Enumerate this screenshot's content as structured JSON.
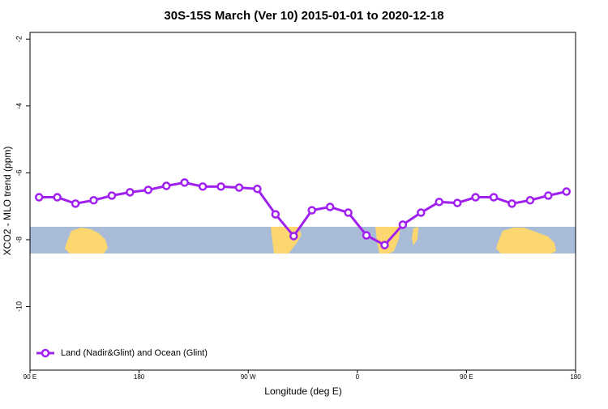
{
  "chart_data": {
    "type": "line",
    "title": "30S-15S March (Ver 10)   2015-01-01 to 2020-12-18",
    "x_label": "Longitude (deg E)",
    "y_label": "XCO2 - MLO trend (ppm)",
    "x": [
      97.5,
      112.5,
      127.5,
      142.5,
      157.5,
      172.5,
      187.5,
      202.5,
      217.5,
      232.5,
      247.5,
      262.5,
      277.5,
      292.5,
      307.5,
      322.5,
      337.5,
      352.5,
      367.5,
      382.5,
      397.5,
      412.5,
      427.5,
      442.5,
      457.5,
      472.5,
      487.5,
      502.5,
      517.5,
      532.5
    ],
    "series": [
      {
        "name": "Land (Nadir&Glint) and Ocean (Glint)",
        "color": "#a020f0",
        "values": [
          -6.73,
          -6.73,
          -6.92,
          -6.82,
          -6.68,
          -6.58,
          -6.51,
          -6.39,
          -6.29,
          -6.41,
          -6.41,
          -6.44,
          -6.48,
          -7.24,
          -7.89,
          -7.12,
          -7.02,
          -7.19,
          -7.87,
          -8.16,
          -7.55,
          -7.19,
          -6.87,
          -6.9,
          -6.73,
          -6.73,
          -6.92,
          -6.82,
          -6.68,
          -6.56
        ]
      }
    ],
    "xlim": [
      90,
      540
    ],
    "xticks": [
      {
        "value": 90,
        "label": "90 E"
      },
      180,
      {
        "value": 270,
        "label": "90 W"
      },
      {
        "value": 360,
        "label": "0"
      },
      {
        "value": 450,
        "label": "90 E"
      },
      {
        "value": 540,
        "label": "180"
      }
    ],
    "ylim": [
      -11.9,
      -1.8
    ],
    "yticks": [
      -10,
      -8,
      -6,
      -4,
      -2
    ],
    "legend": "bottom-left"
  }
}
